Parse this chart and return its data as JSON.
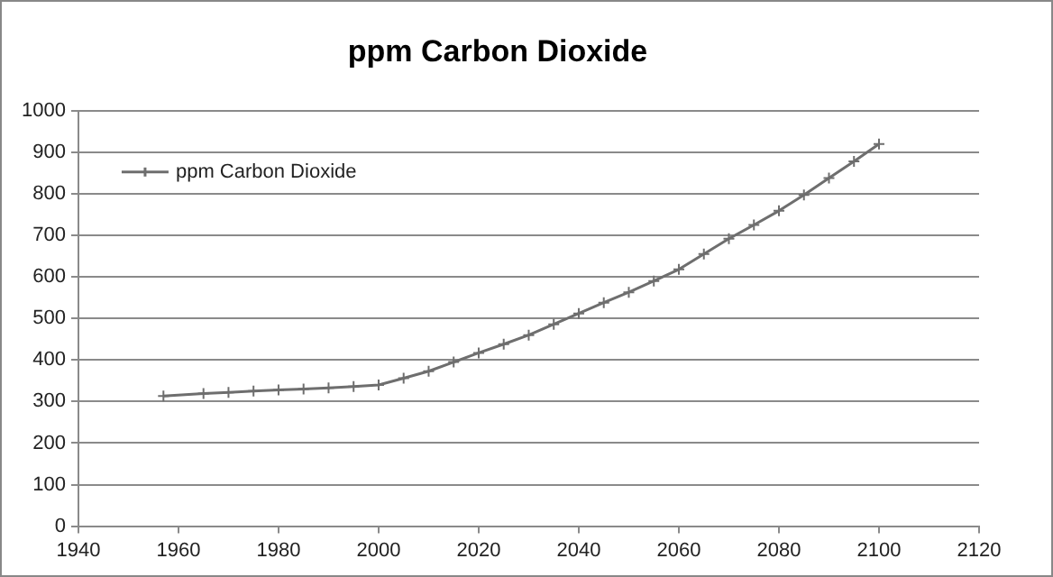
{
  "chart_data": {
    "type": "line",
    "title": "ppm Carbon Dioxide",
    "x": [
      1957,
      1965,
      1970,
      1975,
      1980,
      1985,
      1990,
      1995,
      2000,
      2005,
      2010,
      2015,
      2020,
      2025,
      2030,
      2035,
      2040,
      2045,
      2050,
      2055,
      2060,
      2065,
      2070,
      2075,
      2080,
      2085,
      2090,
      2095,
      2100
    ],
    "series": [
      {
        "name": "ppm Carbon Dioxide",
        "color": "#6e6e6e",
        "values": [
          313,
          319,
          322,
          325,
          328,
          330,
          333,
          336,
          340,
          356,
          373,
          395,
          417,
          438,
          460,
          486,
          512,
          538,
          563,
          590,
          618,
          655,
          692,
          725,
          759,
          797,
          838,
          878,
          920
        ]
      }
    ],
    "xlim": [
      1940,
      2120
    ],
    "xticks": [
      1940,
      1960,
      1980,
      2000,
      2020,
      2040,
      2060,
      2080,
      2100,
      2120
    ],
    "ylim": [
      0,
      1000
    ],
    "yticks": [
      0,
      100,
      200,
      300,
      400,
      500,
      600,
      700,
      800,
      900,
      1000
    ],
    "grid": "y",
    "legend": "top left",
    "marker": "cross",
    "line_style": "solid"
  }
}
